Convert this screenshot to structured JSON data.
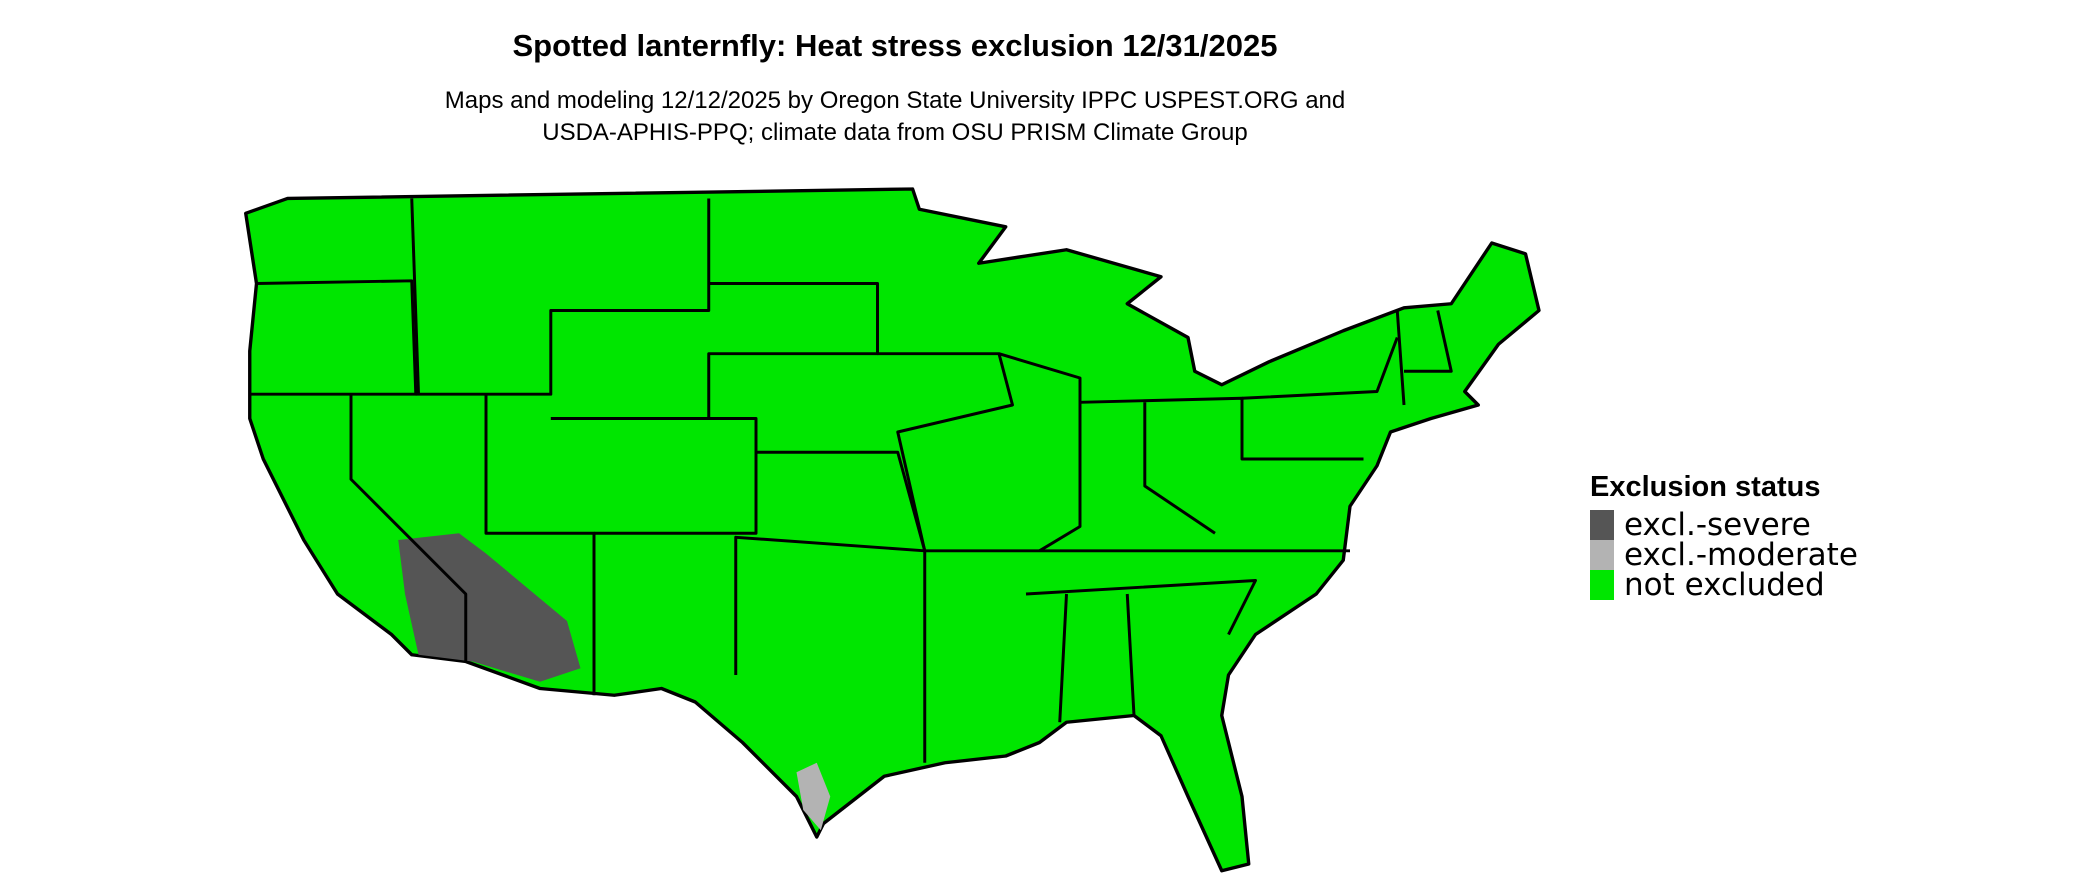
{
  "title": "Spotted lanternfly: Heat stress exclusion 12/31/2025",
  "subtitle": [
    "Maps and modeling 12/12/2025 by Oregon State University IPPC USPEST.ORG and",
    "USDA-APHIS-PPQ; climate data from OSU PRISM Climate Group"
  ],
  "legend": {
    "title": "Exclusion status",
    "items": [
      {
        "label": "excl.-severe",
        "color": "#555555"
      },
      {
        "label": "excl.-moderate",
        "color": "#b3b3b3"
      },
      {
        "label": "not excluded",
        "color": "#00e600"
      }
    ]
  }
}
